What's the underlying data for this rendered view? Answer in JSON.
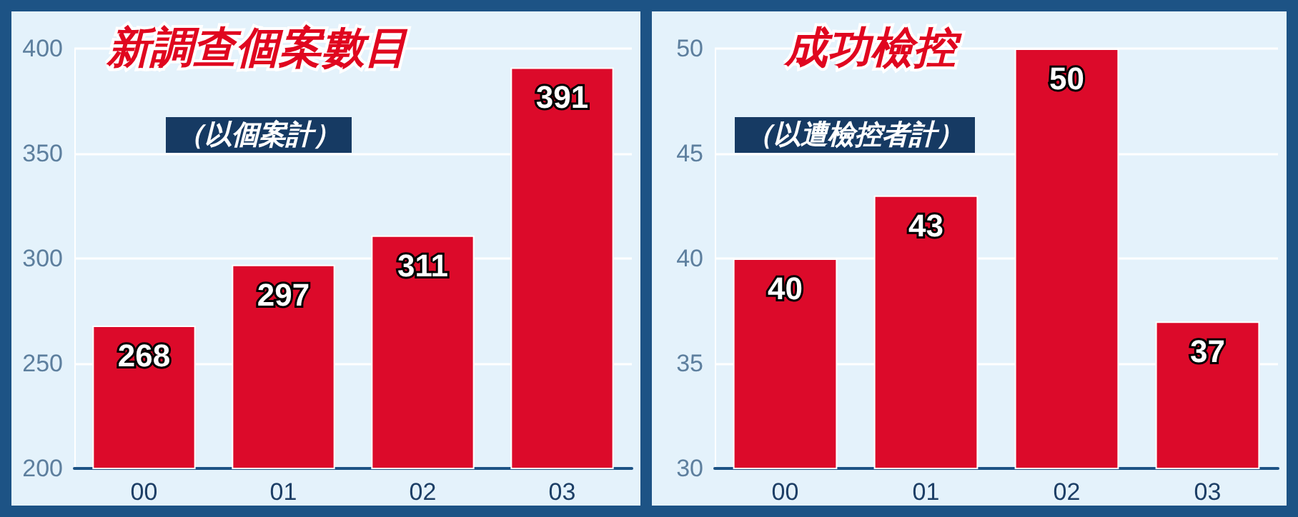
{
  "chart_data": [
    {
      "type": "bar",
      "title": "新調查個案數目",
      "subtitle": "（以個案計）",
      "categories": [
        "00",
        "01",
        "02",
        "03"
      ],
      "values": [
        268,
        297,
        311,
        391
      ],
      "color": "#dc0a2a",
      "ylim": [
        200,
        400
      ],
      "yticks": [
        200,
        250,
        300,
        350,
        400
      ],
      "grid": "y",
      "data_labels": true
    },
    {
      "type": "bar",
      "title": "成功檢控",
      "subtitle": "（以遭檢控者計）",
      "categories": [
        "00",
        "01",
        "02",
        "03"
      ],
      "values": [
        40,
        43,
        50,
        37
      ],
      "color": "#dc0a2a",
      "ylim": [
        30,
        50
      ],
      "yticks": [
        30,
        35,
        40,
        45,
        50
      ],
      "grid": "y",
      "data_labels": true
    }
  ]
}
